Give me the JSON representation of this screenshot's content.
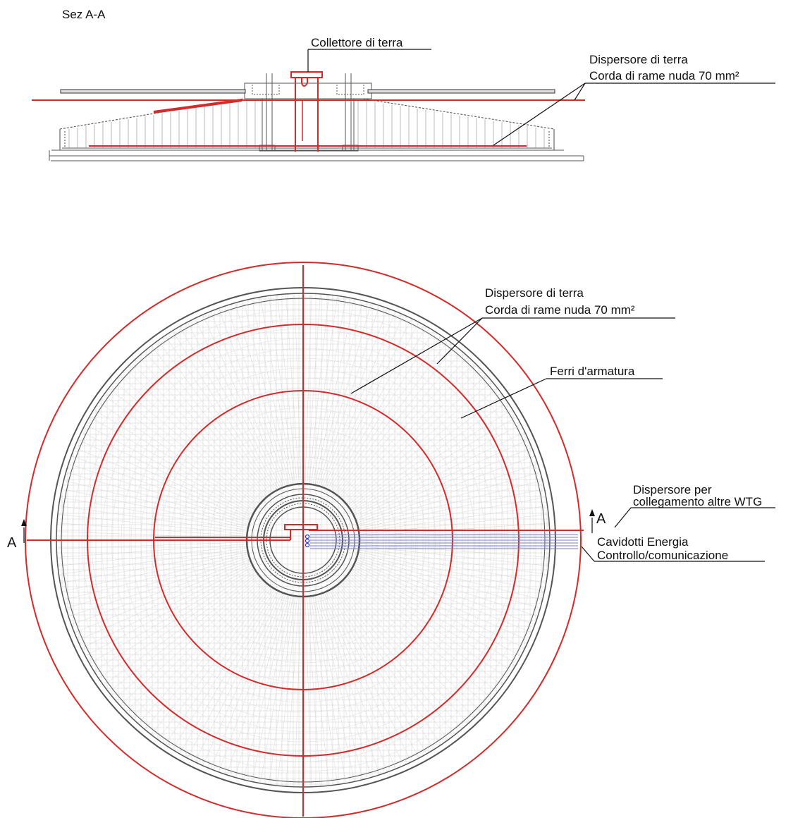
{
  "section_title": "Sez A-A",
  "labels": {
    "collettore": "Collettore di terra",
    "dispersore_line1": "Dispersore di terra",
    "dispersore_line2": "Corda di rame nuda 70 mm²",
    "plan_dispersore_line1": "Dispersore di terra",
    "plan_dispersore_line2": "Corda di rame nuda 70 mm²",
    "ferri": "Ferri d'armatura",
    "wtg_line1": "Dispersore per",
    "wtg_line2": "collegamento altre WTG",
    "cavidotti_line1": "Cavidotti Energia",
    "cavidotti_line2": "Controllo/comunicazione",
    "section_mark_left": "A",
    "section_mark_right": "A"
  },
  "colors": {
    "earthing": "#d42a2a",
    "rebar": "#c9c9c9",
    "structure": "#555555",
    "conduits": "#7a7ad6",
    "text": "#111111"
  }
}
